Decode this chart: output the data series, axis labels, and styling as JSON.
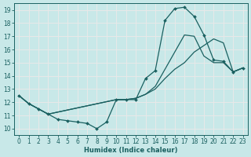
{
  "xlabel": "Humidex (Indice chaleur)",
  "xlim": [
    -0.5,
    23.5
  ],
  "ylim": [
    9.5,
    19.5
  ],
  "xticks": [
    0,
    1,
    2,
    3,
    4,
    5,
    6,
    7,
    8,
    9,
    10,
    11,
    12,
    13,
    14,
    15,
    16,
    17,
    18,
    19,
    20,
    21,
    22,
    23
  ],
  "yticks": [
    10,
    11,
    12,
    13,
    14,
    15,
    16,
    17,
    18,
    19
  ],
  "bg_color": "#c8e8e8",
  "grid_color": "#e8e8e8",
  "line_color": "#1a6060",
  "curve1_x": [
    0,
    1,
    2,
    3,
    4,
    5,
    6,
    7,
    8,
    9,
    10,
    11,
    12,
    13,
    14,
    15,
    16,
    17,
    18,
    19,
    20,
    21,
    22,
    23
  ],
  "curve1_y": [
    12.5,
    11.9,
    11.5,
    11.1,
    10.7,
    10.6,
    10.5,
    10.4,
    10.0,
    10.5,
    12.2,
    12.2,
    12.2,
    13.8,
    14.4,
    18.2,
    19.1,
    19.2,
    18.5,
    17.1,
    15.2,
    15.1,
    14.3,
    14.6
  ],
  "curve2_x": [
    0,
    1,
    2,
    3,
    10,
    11,
    12,
    13,
    14,
    15,
    16,
    17,
    18,
    19,
    20,
    21,
    22,
    23
  ],
  "curve2_y": [
    12.5,
    11.9,
    11.5,
    11.1,
    12.2,
    12.2,
    12.3,
    12.6,
    13.2,
    14.5,
    15.8,
    17.1,
    17.0,
    15.5,
    15.0,
    15.0,
    14.3,
    14.6
  ],
  "curve3_x": [
    0,
    1,
    2,
    3,
    10,
    11,
    12,
    13,
    14,
    15,
    16,
    17,
    18,
    19,
    20,
    21,
    22,
    23
  ],
  "curve3_y": [
    12.5,
    11.9,
    11.5,
    11.1,
    12.2,
    12.2,
    12.3,
    12.6,
    13.0,
    13.8,
    14.5,
    15.0,
    15.8,
    16.3,
    16.8,
    16.5,
    14.3,
    14.6
  ]
}
